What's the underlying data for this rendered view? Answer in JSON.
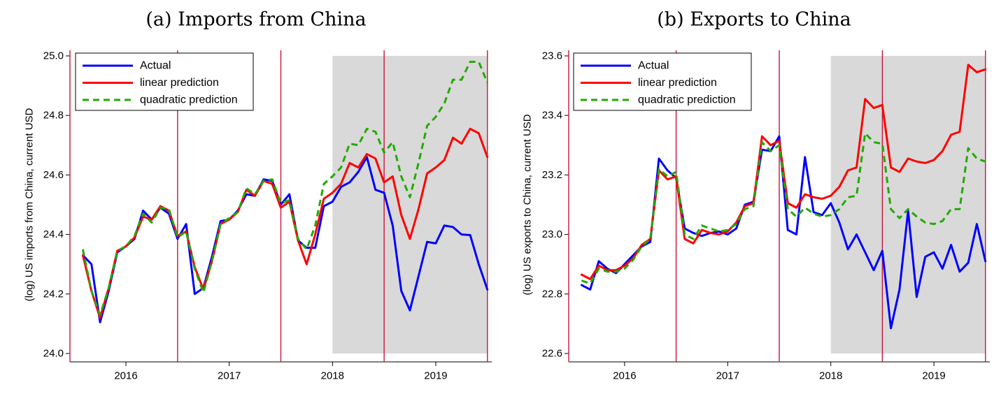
{
  "colors": {
    "actual": "#0000ff",
    "linear": "#ff0000",
    "quadratic": "#22aa00",
    "vline": "#c8143c",
    "shade": "#d9d9d9"
  },
  "chart_data": [
    {
      "type": "line",
      "title": "(a) Imports from China",
      "xlabel": "",
      "ylabel": "(log) US imports from China, current USD",
      "xlim": [
        2015.458,
        2019.542
      ],
      "ylim": [
        24.0,
        25.0
      ],
      "yticks": [
        24.0,
        24.2,
        24.4,
        24.6,
        24.8,
        25.0
      ],
      "ytick_labels": [
        "24.0",
        "24.2",
        "24.4",
        "24.6",
        "24.8",
        "25.0"
      ],
      "xticks": [
        2016,
        2017,
        2018,
        2019
      ],
      "xtick_labels": [
        "2016",
        "2017",
        "2018",
        "2019"
      ],
      "vlines": [
        2015.458,
        2016.5,
        2017.5,
        2018.5,
        2019.5
      ],
      "shaded_region": [
        2018.0,
        2019.5
      ],
      "legend_position": "top-left",
      "x_start": 2015.583,
      "x_step": 0.08333,
      "series": [
        {
          "name": "Actual",
          "color_key": "actual",
          "dash": "solid",
          "values": [
            24.33,
            24.3,
            24.105,
            24.21,
            24.34,
            24.36,
            24.385,
            24.48,
            24.45,
            24.49,
            24.47,
            24.385,
            24.435,
            24.2,
            24.22,
            24.325,
            24.445,
            24.45,
            24.48,
            24.535,
            24.53,
            24.585,
            24.58,
            24.5,
            24.535,
            24.38,
            24.355,
            24.355,
            24.495,
            24.51,
            24.56,
            24.575,
            24.61,
            24.66,
            24.55,
            24.54,
            24.43,
            24.21,
            24.145,
            24.26,
            24.375,
            24.37,
            24.43,
            24.425,
            24.4,
            24.398,
            24.3,
            24.215
          ]
        },
        {
          "name": "linear prediction",
          "color_key": "linear",
          "dash": "solid",
          "values": [
            24.33,
            24.21,
            24.12,
            24.22,
            24.345,
            24.36,
            24.39,
            24.46,
            24.45,
            24.495,
            24.48,
            24.395,
            24.41,
            24.29,
            24.215,
            24.31,
            24.435,
            24.45,
            24.475,
            24.55,
            24.53,
            24.58,
            24.57,
            24.49,
            24.51,
            24.38,
            24.3,
            24.4,
            24.52,
            24.54,
            24.57,
            24.64,
            24.625,
            24.67,
            24.655,
            24.575,
            24.595,
            24.465,
            24.385,
            24.485,
            24.605,
            24.625,
            24.65,
            24.725,
            24.705,
            24.755,
            24.74,
            24.66
          ]
        },
        {
          "name": "quadratic prediction",
          "color_key": "quadratic",
          "dash": "dashed",
          "values": [
            24.35,
            24.21,
            24.13,
            24.22,
            24.345,
            24.36,
            24.395,
            24.47,
            24.44,
            24.49,
            24.485,
            24.39,
            24.41,
            24.285,
            24.205,
            24.31,
            24.435,
            24.455,
            24.475,
            24.555,
            24.535,
            24.58,
            24.585,
            24.505,
            24.515,
            24.385,
            24.35,
            24.43,
            24.57,
            24.595,
            24.625,
            24.705,
            24.7,
            24.755,
            24.745,
            24.675,
            24.71,
            24.595,
            24.525,
            24.64,
            24.765,
            24.795,
            24.84,
            24.92,
            24.92,
            24.98,
            24.98,
            24.91
          ]
        }
      ]
    },
    {
      "type": "line",
      "title": "(b) Exports to China",
      "xlabel": "",
      "ylabel": "(log) US exports to China, current USD",
      "xlim": [
        2015.458,
        2019.542
      ],
      "ylim": [
        22.6,
        23.6
      ],
      "yticks": [
        22.6,
        22.8,
        23.0,
        23.2,
        23.4,
        23.6
      ],
      "ytick_labels": [
        "22.6",
        "22.8",
        "23.0",
        "23.2",
        "23.4",
        "23.6"
      ],
      "xticks": [
        2016,
        2017,
        2018,
        2019
      ],
      "xtick_labels": [
        "2016",
        "2017",
        "2018",
        "2019"
      ],
      "vlines": [
        2015.458,
        2016.5,
        2017.5,
        2018.5,
        2019.5
      ],
      "shaded_region": [
        2018.0,
        2019.5
      ],
      "legend_position": "top-left",
      "x_start": 2015.583,
      "x_step": 0.08333,
      "series": [
        {
          "name": "Actual",
          "color_key": "actual",
          "dash": "solid",
          "values": [
            22.83,
            22.815,
            22.91,
            22.885,
            22.87,
            22.9,
            22.93,
            22.96,
            22.975,
            23.255,
            23.215,
            23.19,
            23.02,
            23.005,
            22.995,
            23.005,
            23.01,
            23.0,
            23.02,
            23.1,
            23.11,
            23.285,
            23.28,
            23.33,
            23.015,
            23.0,
            23.26,
            23.075,
            23.065,
            23.105,
            23.04,
            22.95,
            23.0,
            22.94,
            22.88,
            22.945,
            22.685,
            22.815,
            23.08,
            22.79,
            22.925,
            22.94,
            22.885,
            22.965,
            22.875,
            22.905,
            23.035,
            22.91
          ]
        },
        {
          "name": "linear prediction",
          "color_key": "linear",
          "dash": "solid",
          "values": [
            22.865,
            22.85,
            22.895,
            22.88,
            22.88,
            22.895,
            22.92,
            22.965,
            22.985,
            23.215,
            23.185,
            23.195,
            22.985,
            22.97,
            23.015,
            23.005,
            23.0,
            23.01,
            23.04,
            23.095,
            23.105,
            23.33,
            23.3,
            23.315,
            23.105,
            23.09,
            23.135,
            23.125,
            23.12,
            23.13,
            23.16,
            23.215,
            23.225,
            23.455,
            23.425,
            23.435,
            23.225,
            23.21,
            23.255,
            23.245,
            23.24,
            23.25,
            23.28,
            23.335,
            23.345,
            23.57,
            23.545,
            23.555
          ]
        },
        {
          "name": "quadratic prediction",
          "color_key": "quadratic",
          "dash": "dashed",
          "values": [
            22.845,
            22.835,
            22.885,
            22.875,
            22.875,
            22.885,
            22.915,
            22.96,
            22.985,
            23.22,
            23.195,
            23.21,
            23.0,
            22.985,
            23.03,
            23.02,
            23.01,
            23.015,
            23.035,
            23.085,
            23.095,
            23.31,
            23.28,
            23.3,
            23.085,
            23.06,
            23.09,
            23.07,
            23.06,
            23.065,
            23.085,
            23.125,
            23.13,
            23.34,
            23.31,
            23.305,
            23.085,
            23.055,
            23.085,
            23.06,
            23.04,
            23.035,
            23.045,
            23.085,
            23.085,
            23.29,
            23.255,
            23.245
          ]
        }
      ]
    }
  ]
}
